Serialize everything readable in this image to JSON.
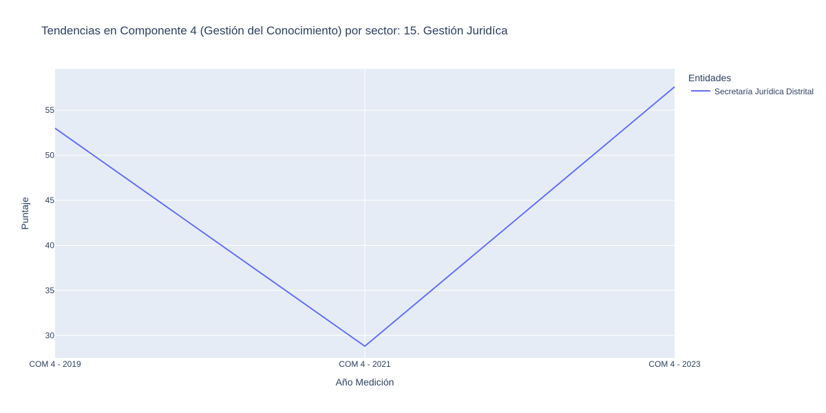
{
  "chart_data": {
    "type": "line",
    "title": "Tendencias en Componente 4 (Gestión del Conocimiento) por sector: 15. Gestión Juridíca",
    "xlabel": "Año Medición",
    "ylabel": "Puntaje",
    "categories": [
      "COM 4 - 2019",
      "COM 4 - 2021",
      "COM 4 - 2023"
    ],
    "ylim": [
      27.5,
      59.6
    ],
    "yticks": [
      30,
      35,
      40,
      45,
      50,
      55
    ],
    "grid": true,
    "legend": {
      "title": "Entidades",
      "position": "right"
    },
    "series": [
      {
        "name": "Secretaría Jurídica Distrital",
        "values": [
          53.0,
          28.8,
          57.6
        ],
        "color": "#636efa"
      }
    ],
    "background_color": "#e5ecf6",
    "grid_color": "#ffffff",
    "text_color": "#2a3f5f"
  }
}
